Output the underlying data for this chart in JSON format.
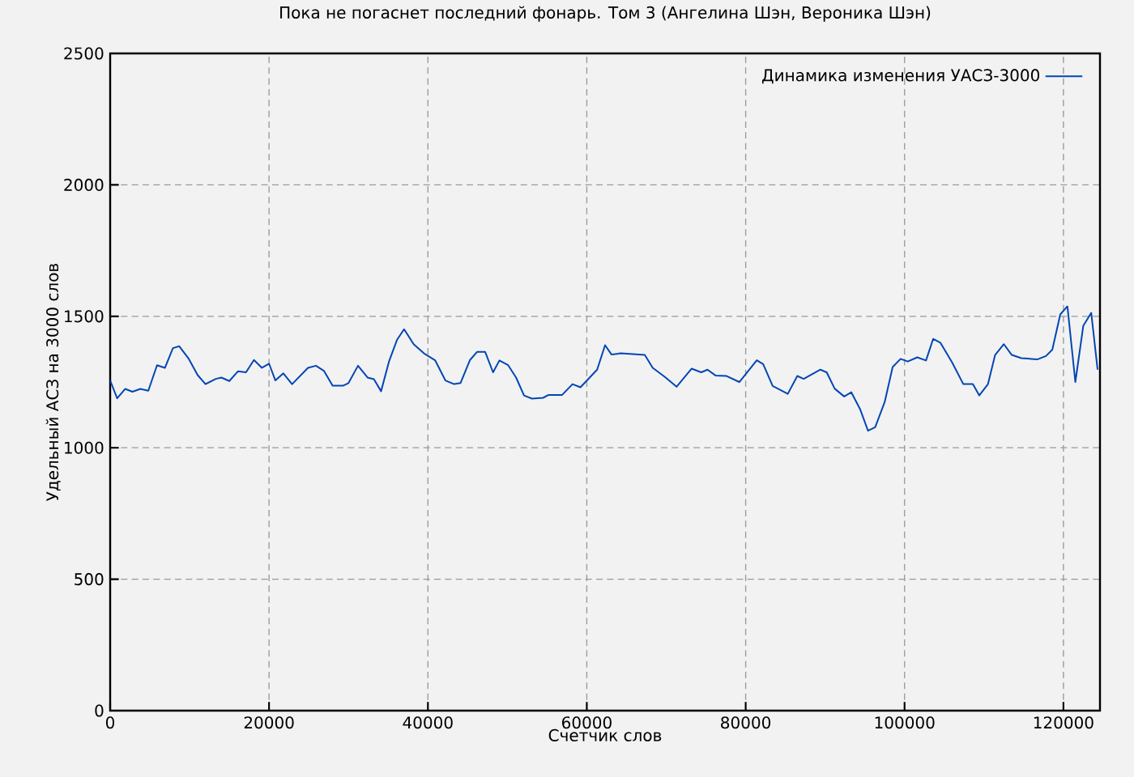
{
  "chart_data": {
    "type": "line",
    "title": "Пока не погаснет последний фонарь. Том 3 (Ангелина Шэн, Вероника Шэн)",
    "xlabel": "Счетчик слов",
    "ylabel": "Удельный АСЗ на 3000 слов",
    "xlim": [
      0,
      124600
    ],
    "ylim": [
      0,
      2500
    ],
    "xticks": [
      0,
      20000,
      40000,
      60000,
      80000,
      100000,
      120000
    ],
    "yticks": [
      0,
      500,
      1000,
      1500,
      2000,
      2500
    ],
    "grid": true,
    "legend": "top right",
    "series": [
      {
        "name": "Динамика изменения УАСЗ-3000",
        "color": "#0046b4",
        "x": [
          0,
          880,
          1900,
          2800,
          3800,
          4800,
          5900,
          6900,
          7900,
          8700,
          9900,
          11000,
          12000,
          13300,
          14000,
          15000,
          16100,
          17100,
          18100,
          19100,
          20000,
          20800,
          21800,
          22900,
          24900,
          25900,
          26900,
          28000,
          29300,
          30000,
          31200,
          32400,
          33200,
          34100,
          35100,
          36100,
          37000,
          38200,
          39500,
          40900,
          42200,
          43300,
          44100,
          45300,
          46200,
          47200,
          48200,
          49000,
          50100,
          51100,
          52100,
          53100,
          54500,
          55200,
          56900,
          58200,
          59200,
          61300,
          62300,
          63100,
          64300,
          67300,
          68300,
          69800,
          71300,
          73200,
          74400,
          75200,
          76200,
          77600,
          79200,
          80300,
          81400,
          82200,
          83400,
          85300,
          86500,
          87300,
          89400,
          90200,
          91200,
          92400,
          93300,
          94400,
          95400,
          96300,
          97500,
          98500,
          99500,
          100400,
          101600,
          102700,
          103600,
          104500,
          106000,
          107400,
          108600,
          109400,
          110500,
          111400,
          112500,
          113500,
          114700,
          116700,
          117800,
          118600,
          119600,
          120500,
          121500,
          122500,
          123500,
          124300
        ],
        "values": [
          1256,
          1188,
          1224,
          1213,
          1224,
          1217,
          1314,
          1304,
          1379,
          1386,
          1338,
          1277,
          1242,
          1262,
          1267,
          1254,
          1291,
          1287,
          1334,
          1304,
          1320,
          1256,
          1283,
          1242,
          1304,
          1312,
          1293,
          1236,
          1236,
          1246,
          1312,
          1267,
          1261,
          1215,
          1328,
          1410,
          1451,
          1394,
          1359,
          1333,
          1256,
          1242,
          1246,
          1334,
          1365,
          1365,
          1287,
          1332,
          1314,
          1267,
          1199,
          1187,
          1190,
          1201,
          1201,
          1242,
          1230,
          1297,
          1390,
          1355,
          1359,
          1353,
          1304,
          1270,
          1232,
          1301,
          1287,
          1297,
          1275,
          1273,
          1250,
          1291,
          1333,
          1318,
          1235,
          1205,
          1273,
          1262,
          1297,
          1287,
          1225,
          1195,
          1211,
          1147,
          1065,
          1078,
          1174,
          1307,
          1338,
          1328,
          1344,
          1332,
          1414,
          1400,
          1324,
          1242,
          1242,
          1199,
          1242,
          1353,
          1394,
          1353,
          1341,
          1336,
          1349,
          1373,
          1507,
          1538,
          1250,
          1464,
          1513,
          1297
        ]
      }
    ]
  }
}
